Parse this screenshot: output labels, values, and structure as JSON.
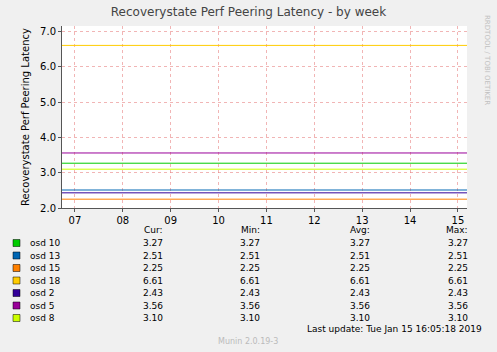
{
  "chart_data": {
    "type": "line",
    "title": "Recoverystate Perf Peering Latency - by week",
    "y_label": "Recoverystate Perf Peering Latency",
    "x": [
      6.73,
      15.19
    ],
    "xlim": [
      6.73,
      15.19
    ],
    "xticks": [
      {
        "value": 7,
        "label": "07"
      },
      {
        "value": 8,
        "label": "08"
      },
      {
        "value": 9,
        "label": "09"
      },
      {
        "value": 10,
        "label": "10"
      },
      {
        "value": 11,
        "label": "11"
      },
      {
        "value": 12,
        "label": "12"
      },
      {
        "value": 13,
        "label": "13"
      },
      {
        "value": 14,
        "label": "14"
      },
      {
        "value": 15,
        "label": "15"
      }
    ],
    "ylim": [
      2.0,
      7.16
    ],
    "yticks": [
      {
        "value": 2,
        "label": "2.0"
      },
      {
        "value": 3,
        "label": "3.0"
      },
      {
        "value": 4,
        "label": "4.0"
      },
      {
        "value": 5,
        "label": "5.0"
      },
      {
        "value": 6,
        "label": "6.0"
      },
      {
        "value": 7,
        "label": "7.0"
      }
    ],
    "grid": true,
    "legend_columns": [
      "Cur:",
      "Min:",
      "Avg:",
      "Max:"
    ],
    "series": [
      {
        "name": "osd 10",
        "color": "#00cc00",
        "values": [
          3.27,
          3.27
        ],
        "cur": 3.27,
        "min": 3.27,
        "avg": 3.27,
        "max": 3.27
      },
      {
        "name": "osd 13",
        "color": "#0066b3",
        "values": [
          2.51,
          2.51
        ],
        "cur": 2.51,
        "min": 2.51,
        "avg": 2.51,
        "max": 2.51
      },
      {
        "name": "osd 15",
        "color": "#ff8000",
        "values": [
          2.25,
          2.25
        ],
        "cur": 2.25,
        "min": 2.25,
        "avg": 2.25,
        "max": 2.25
      },
      {
        "name": "osd 18",
        "color": "#ffcc00",
        "values": [
          6.61,
          6.61
        ],
        "cur": 6.61,
        "min": 6.61,
        "avg": 6.61,
        "max": 6.61
      },
      {
        "name": "osd 2",
        "color": "#330099",
        "values": [
          2.43,
          2.43
        ],
        "cur": 2.43,
        "min": 2.43,
        "avg": 2.43,
        "max": 2.43
      },
      {
        "name": "osd 5",
        "color": "#990099",
        "values": [
          3.56,
          3.56
        ],
        "cur": 3.56,
        "min": 3.56,
        "avg": 3.56,
        "max": 3.56
      },
      {
        "name": "osd 8",
        "color": "#ccff00",
        "values": [
          3.1,
          3.1
        ],
        "cur": 3.1,
        "min": 3.1,
        "avg": 3.1,
        "max": 3.1
      }
    ],
    "footer": "Last update: Tue Jan 15 16:05:18 2019",
    "credit": "Munin 2.0.19-3",
    "watermark": "RRDTOOL / TOBI OETIKER"
  }
}
